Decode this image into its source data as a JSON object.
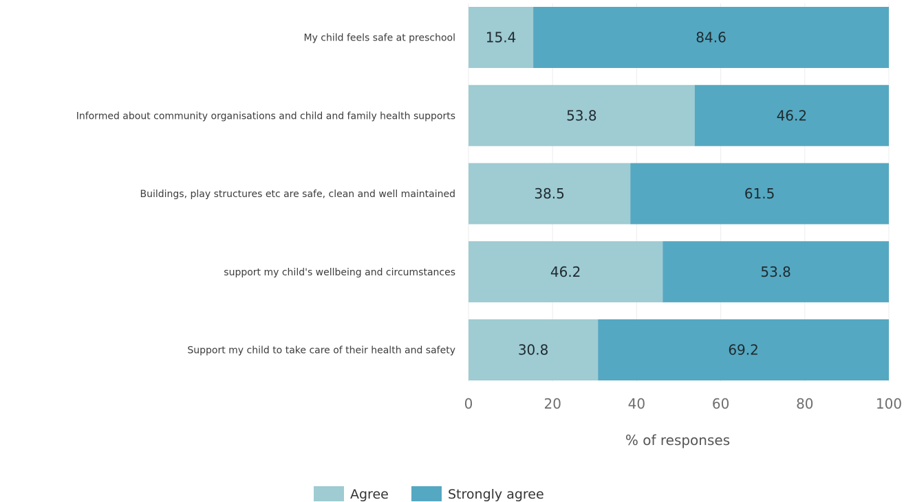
{
  "chart_data": {
    "type": "bar",
    "orientation": "horizontal",
    "stacked": true,
    "categories": [
      "My child feels safe at preschool",
      "Informed about community organisations and child and family health supports",
      "Buildings, play structures etc are safe, clean and well maintained",
      "support my child's wellbeing and circumstances",
      "Support my child to take care of their health and safety"
    ],
    "series": [
      {
        "name": "Agree",
        "values": [
          15.4,
          53.8,
          38.5,
          46.2,
          30.8
        ],
        "color": "#9fcbd2"
      },
      {
        "name": "Strongly agree",
        "values": [
          84.6,
          46.2,
          61.5,
          53.8,
          69.2
        ],
        "color": "#55a8c1"
      }
    ],
    "data_labels": [
      [
        "15.4",
        "53.8",
        "38.5",
        "46.2",
        "30.8"
      ],
      [
        "84.6",
        "46.2",
        "61.5",
        "53.8",
        "69.2"
      ]
    ],
    "xlabel": "% of responses",
    "ylabel": "",
    "xlim": [
      0,
      100
    ],
    "xticks": [
      "0",
      "20",
      "40",
      "60",
      "80",
      "100"
    ],
    "grid": true,
    "legend_position": "bottom"
  }
}
